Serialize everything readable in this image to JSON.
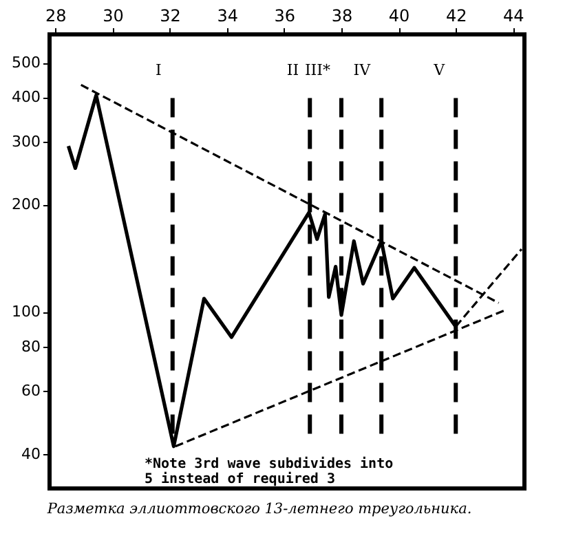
{
  "chart_data": {
    "type": "line",
    "log": "y",
    "grid": false,
    "marker": "none",
    "line_style": "solid",
    "xlim": [
      27.8,
      44.4
    ],
    "xticks": [
      28,
      30,
      32,
      34,
      36,
      38,
      40,
      42,
      44
    ],
    "ylim": [
      32,
      600
    ],
    "yticks": [
      40,
      60,
      80,
      100,
      200,
      300,
      400,
      500
    ],
    "series": [
      {
        "color": "#000000",
        "x": [
          28.46,
          28.7,
          29.43,
          32.14,
          33.2,
          34.16,
          36.87,
          37.15,
          37.43,
          37.56,
          37.8,
          38.0,
          38.44,
          38.76,
          39.4,
          39.8,
          40.55,
          42.0
        ],
        "values": [
          292,
          253,
          405,
          42,
          109,
          85,
          190,
          160,
          188,
          110,
          134,
          98,
          158,
          120,
          158,
          109,
          133,
          91
        ]
      },
      {
        "type": "line",
        "line_style": "dashed",
        "color": "#000000",
        "x": [
          28.9,
          43.5
        ],
        "values": [
          433,
          106
        ]
      },
      {
        "type": "line",
        "line_style": "dashed",
        "color": "#000000",
        "x": [
          32.2,
          43.7
        ],
        "values": [
          42,
          101
        ]
      },
      {
        "type": "line",
        "line_style": "dashed",
        "color": "#000000",
        "x": [
          42.0,
          44.3
        ],
        "values": [
          91,
          150
        ]
      }
    ],
    "ref_lines": [
      {
        "axis": "x",
        "value": 32.1,
        "label": "I",
        "line_style": "dashed",
        "color": "#000000"
      },
      {
        "axis": "x",
        "value": 36.9,
        "label": "II",
        "line_style": "dashed",
        "color": "#000000"
      },
      {
        "axis": "x",
        "value": 38.0,
        "label": "III*",
        "line_style": "dashed",
        "color": "#000000"
      },
      {
        "axis": "x",
        "value": 39.4,
        "label": "IV",
        "line_style": "dashed",
        "color": "#000000"
      },
      {
        "axis": "x",
        "value": 42.0,
        "label": "V",
        "line_style": "dashed",
        "color": "#000000"
      }
    ],
    "annotations": [
      "*Note 3rd wave subdivides into\n5 instead of required 3",
      "Разметка эллиоттовского 13-летнего треугольника."
    ]
  }
}
